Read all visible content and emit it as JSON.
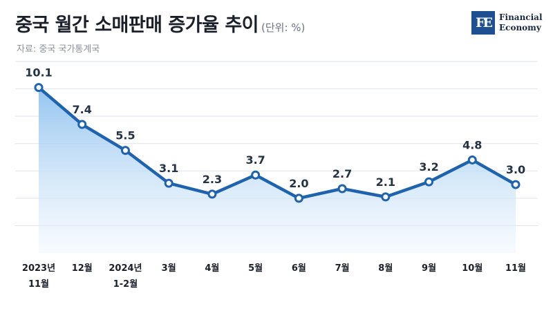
{
  "header": {
    "title": "중국 월간 소매판매 증가율 추이",
    "unit": "(단위: %)",
    "source": "자료: 중국 국가통계국"
  },
  "logo": {
    "mark": "FE",
    "line1": "Financial",
    "line2": "Economy"
  },
  "colors": {
    "line": "#1f63ad",
    "area_top": "#8ec1ef",
    "area_bottom": "#eef6fd",
    "grid": "#dde3ea",
    "marker_fill": "#ffffff"
  },
  "chart_data": {
    "type": "area",
    "title": "중국 월간 소매판매 증가율 추이",
    "unit": "(단위: %)",
    "categories": [
      [
        "2023년",
        "11월"
      ],
      [
        "12월"
      ],
      [
        "2024년",
        "1-2월"
      ],
      [
        "3월"
      ],
      [
        "4월"
      ],
      [
        "5월"
      ],
      [
        "6월"
      ],
      [
        "7월"
      ],
      [
        "8월"
      ],
      [
        "9월"
      ],
      [
        "10월"
      ],
      [
        "11월"
      ]
    ],
    "values": [
      10.1,
      7.4,
      5.5,
      3.1,
      2.3,
      3.7,
      2.0,
      2.7,
      2.1,
      3.2,
      4.8,
      3.0
    ],
    "labels": [
      "10.1",
      "7.4",
      "5.5",
      "3.1",
      "2.3",
      "3.7",
      "2.0",
      "2.7",
      "2.1",
      "3.2",
      "4.8",
      "3.0"
    ],
    "ylim": [
      -2,
      12
    ],
    "gridlines": [
      0,
      2,
      4,
      6,
      8,
      10,
      12
    ],
    "grid": true,
    "legend": "none"
  }
}
